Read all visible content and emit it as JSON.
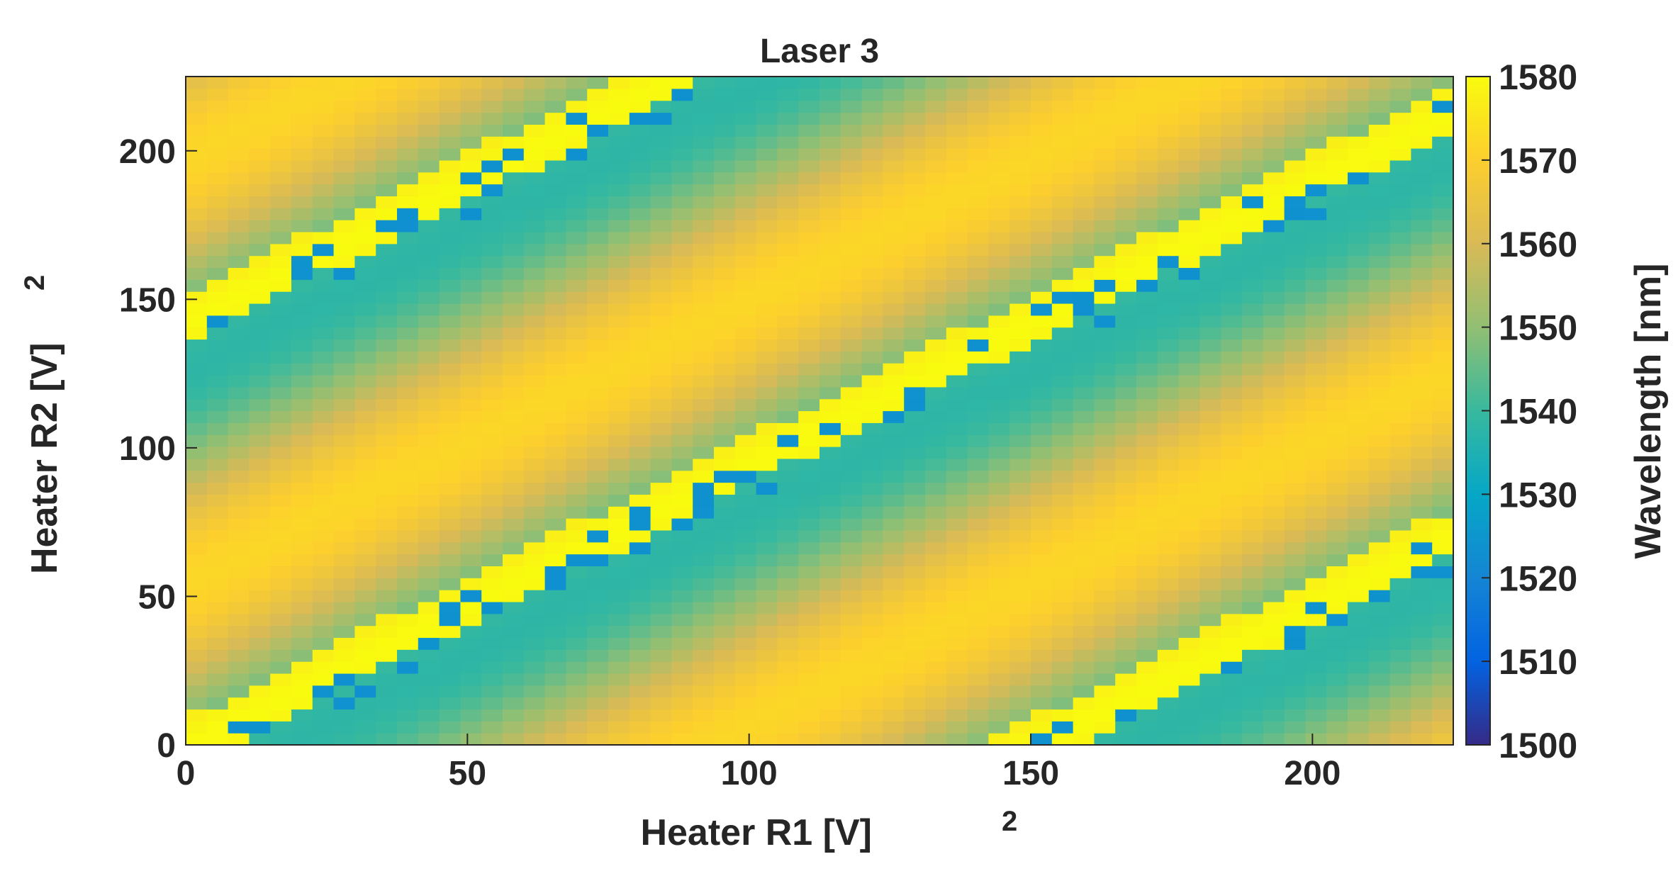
{
  "chart_data": {
    "type": "heatmap",
    "title": "Laser 3",
    "xlabel": "Heater R1 [V]",
    "xlabel_exponent": "2",
    "ylabel": "Heater R2 [V]",
    "ylabel_exponent": "2",
    "xlim": [
      0,
      225
    ],
    "ylim": [
      0,
      225
    ],
    "xticks": [
      0,
      50,
      100,
      150,
      200
    ],
    "yticks": [
      0,
      50,
      100,
      150,
      200
    ],
    "colorbar": {
      "label": "Wavelength [nm]",
      "range": [
        1500,
        1580
      ],
      "ticks": [
        1500,
        1510,
        1520,
        1530,
        1540,
        1550,
        1560,
        1570,
        1580
      ],
      "colormap": "parula",
      "colors": [
        "#352a87",
        "#0363e1",
        "#1485d4",
        "#06a7c6",
        "#38b99e",
        "#92bf73",
        "#d9ba56",
        "#fcce2e",
        "#f9fb0e"
      ]
    },
    "grid": false,
    "legend": "none",
    "description_values": {
      "background_band_low_nm": 1538,
      "mode_jump_high_nm": 1580,
      "mode_jump_low_nm": 1520
    }
  }
}
